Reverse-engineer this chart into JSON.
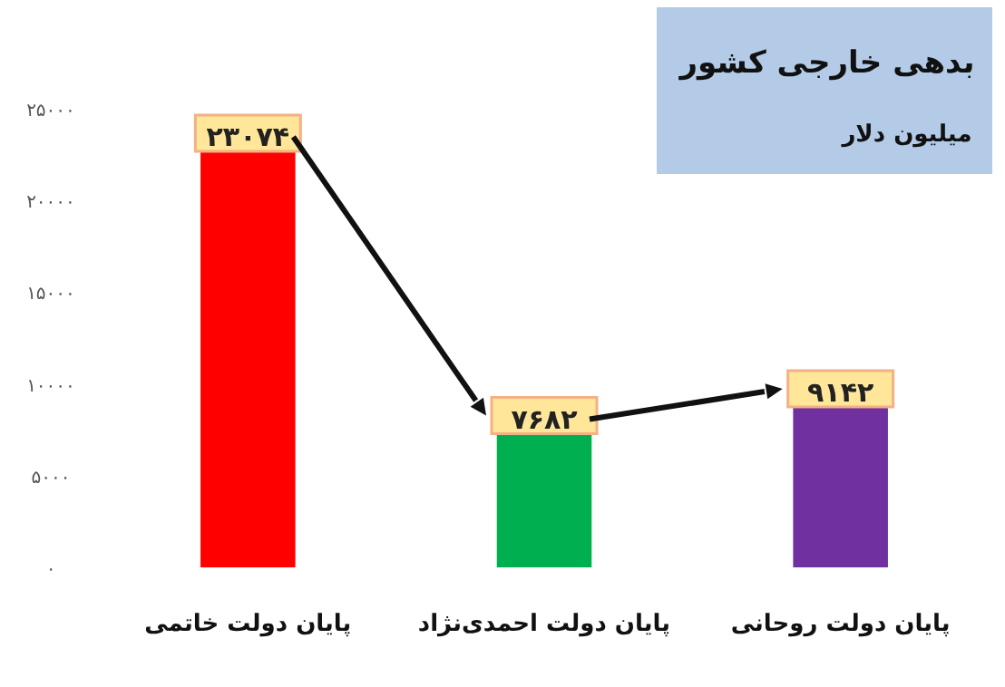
{
  "chart_data": {
    "type": "bar",
    "title": "بدهی خارجی کشور",
    "subtitle": "میلیون دلار",
    "categories": [
      "پایان دولت خاتمی",
      "پایان دولت احمدی‌نژاد",
      "پایان دولت روحانی"
    ],
    "values": [
      23074,
      7682,
      9142
    ],
    "colors": [
      "#ff0000",
      "#00b050",
      "#7030a0"
    ],
    "value_labels": [
      "۲۳۰۷۴",
      "۷۶۸۲",
      "۹۱۴۲"
    ],
    "ylim": [
      0,
      25000
    ],
    "yticks": [
      {
        "value": 0,
        "label": "۰"
      },
      {
        "value": 5000,
        "label": "۵۰۰۰"
      },
      {
        "value": 10000,
        "label": "۱۰۰۰۰"
      },
      {
        "value": 15000,
        "label": "۱۵۰۰۰"
      },
      {
        "value": 20000,
        "label": "۲۰۰۰۰"
      },
      {
        "value": 25000,
        "label": "۲۵۰۰۰"
      }
    ],
    "grid": false
  }
}
